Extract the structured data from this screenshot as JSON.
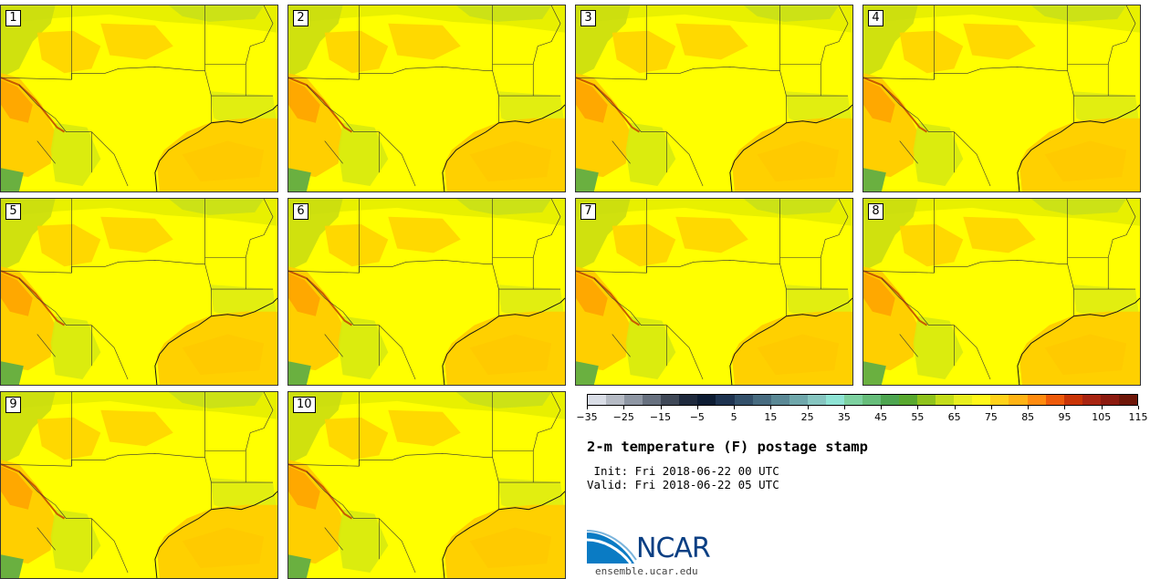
{
  "panels": [
    {
      "label": "1"
    },
    {
      "label": "2"
    },
    {
      "label": "3"
    },
    {
      "label": "4"
    },
    {
      "label": "5"
    },
    {
      "label": "6"
    },
    {
      "label": "7"
    },
    {
      "label": "8"
    },
    {
      "label": "9"
    },
    {
      "label": "10"
    }
  ],
  "colorbar": {
    "colors": [
      "#d9dde6",
      "#b5bac4",
      "#8e96a3",
      "#67707f",
      "#3f4857",
      "#1f2a3d",
      "#0d1c33",
      "#1e3350",
      "#33506a",
      "#476b80",
      "#5a8895",
      "#6fa7ab",
      "#86c5c0",
      "#8ee3d4",
      "#7dd1a0",
      "#66bd7a",
      "#4da550",
      "#58a82e",
      "#8fc21c",
      "#c3dc1a",
      "#e8ee1e",
      "#fff71a",
      "#ffd21a",
      "#ffb314",
      "#ff8b0f",
      "#ed5a0a",
      "#c93406",
      "#a82411",
      "#8c1a0f",
      "#6e1608"
    ],
    "tick_labels": [
      "−35",
      "−25",
      "−15",
      "−5",
      "5",
      "15",
      "25",
      "35",
      "45",
      "55",
      "65",
      "75",
      "85",
      "95",
      "105",
      "115"
    ]
  },
  "title": "2-m temperature (F) postage stamp",
  "init_text": " Init: Fri 2018-06-22 00 UTC",
  "valid_text": "Valid: Fri 2018-06-22 05 UTC",
  "logo": {
    "text": "NCAR",
    "color_primary": "#0b3f83",
    "color_accent": "#0a7bc4"
  },
  "site": "ensemble.ucar.edu"
}
